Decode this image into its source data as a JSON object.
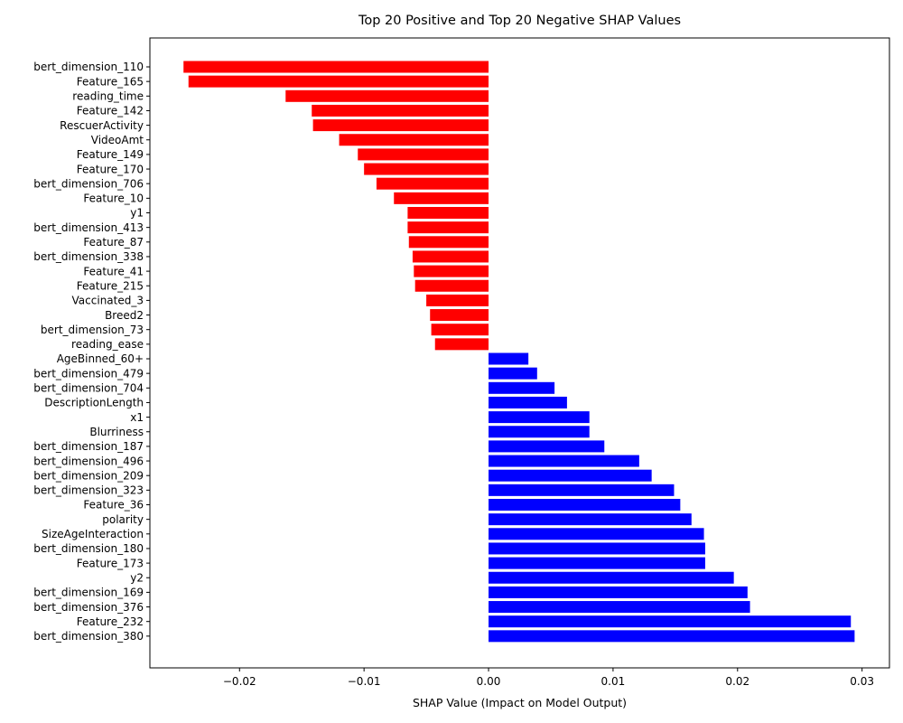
{
  "chart_data": {
    "type": "bar",
    "orientation": "horizontal",
    "title": "Top 20 Positive and Top 20 Negative SHAP Values",
    "xlabel": "SHAP Value (Impact on Model Output)",
    "ylabel": "",
    "xlim": [
      -0.0272,
      0.0322
    ],
    "xticks": [
      -0.02,
      -0.01,
      0.0,
      0.01,
      0.02,
      0.03
    ],
    "xtick_labels": [
      "−0.02",
      "−0.01",
      "0.00",
      "0.01",
      "0.02",
      "0.03"
    ],
    "grid": false,
    "legend": null,
    "colors": {
      "negative": "#ff0000",
      "positive": "#0000ff"
    },
    "categories": [
      "bert_dimension_110",
      "Feature_165",
      "reading_time",
      "Feature_142",
      "RescuerActivity",
      "VideoAmt",
      "Feature_149",
      "Feature_170",
      "bert_dimension_706",
      "Feature_10",
      "y1",
      "bert_dimension_413",
      "Feature_87",
      "bert_dimension_338",
      "Feature_41",
      "Feature_215",
      "Vaccinated_3",
      "Breed2",
      "bert_dimension_73",
      "reading_ease",
      "AgeBinned_60+",
      "bert_dimension_479",
      "bert_dimension_704",
      "DescriptionLength",
      "x1",
      "Blurriness",
      "bert_dimension_187",
      "bert_dimension_496",
      "bert_dimension_209",
      "bert_dimension_323",
      "Feature_36",
      "polarity",
      "SizeAgeInteraction",
      "bert_dimension_180",
      "Feature_173",
      "y2",
      "bert_dimension_169",
      "bert_dimension_376",
      "Feature_232",
      "bert_dimension_380"
    ],
    "values": [
      -0.0245,
      -0.0241,
      -0.0163,
      -0.0142,
      -0.0141,
      -0.012,
      -0.0105,
      -0.01,
      -0.009,
      -0.0076,
      -0.0065,
      -0.0065,
      -0.0064,
      -0.0061,
      -0.006,
      -0.0059,
      -0.005,
      -0.0047,
      -0.0046,
      -0.0043,
      0.0032,
      0.0039,
      0.0053,
      0.0063,
      0.0081,
      0.0081,
      0.0093,
      0.0121,
      0.0131,
      0.0149,
      0.0154,
      0.0163,
      0.0173,
      0.0174,
      0.0174,
      0.0197,
      0.0208,
      0.021,
      0.0291,
      0.0294
    ]
  }
}
